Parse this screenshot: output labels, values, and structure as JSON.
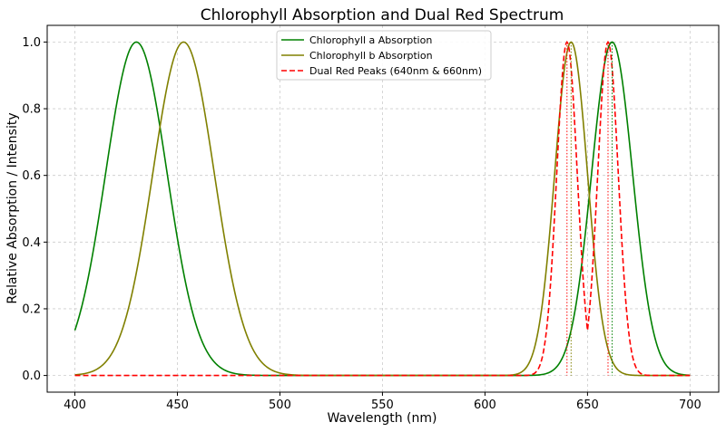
{
  "chart_data": {
    "type": "line",
    "title": "Chlorophyll Absorption and Dual Red Spectrum",
    "xlabel": "Wavelength (nm)",
    "ylabel": "Relative Absorption / Intensity",
    "xlim": [
      386.5,
      714
    ],
    "ylim": [
      -0.05,
      1.05
    ],
    "xticks": [
      400,
      450,
      500,
      550,
      600,
      650,
      700
    ],
    "yticks": [
      0.0,
      0.2,
      0.4,
      0.6,
      0.8,
      1.0
    ],
    "x_range": [
      400,
      700
    ],
    "grid": true,
    "legend_position": "top-center",
    "series": [
      {
        "name": "Chlorophyll a Absorption",
        "color": "#008000",
        "line_style": "solid",
        "peaks": [
          {
            "center": 430,
            "width": 15,
            "height": 1.0
          },
          {
            "center": 662,
            "width": 10,
            "height": 1.0
          }
        ]
      },
      {
        "name": "Chlorophyll b Absorption",
        "color": "#808000",
        "line_style": "solid",
        "peaks": [
          {
            "center": 453,
            "width": 15,
            "height": 1.0
          },
          {
            "center": 642,
            "width": 8,
            "height": 1.0
          }
        ]
      },
      {
        "name": "Dual Red Peaks (640nm & 660nm)",
        "color": "#ff0000",
        "line_style": "dashed",
        "peaks": [
          {
            "center": 640,
            "width": 5,
            "height": 1.0
          },
          {
            "center": 660,
            "width": 5,
            "height": 1.0
          }
        ]
      }
    ],
    "vlines": [
      {
        "x": 640,
        "color": "#ff0000"
      },
      {
        "x": 642,
        "color": "#808000"
      },
      {
        "x": 660,
        "color": "#ff0000"
      },
      {
        "x": 662,
        "color": "#008000"
      }
    ]
  }
}
